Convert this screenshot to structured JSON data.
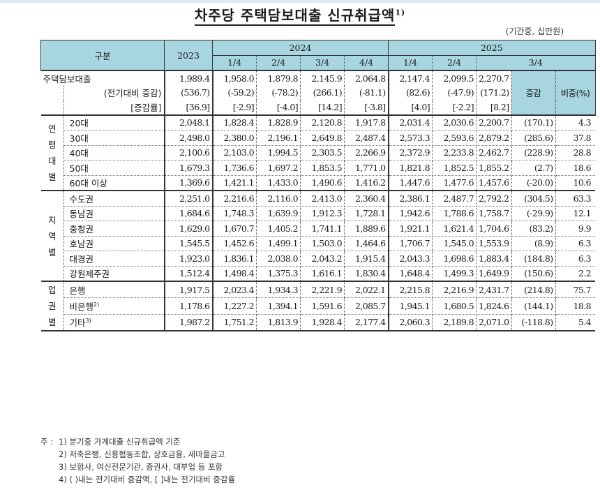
{
  "title": "차주당 주택담보대출 신규취급액",
  "title_sup": "1)",
  "unit": "(기간중, 십만원)",
  "header": {
    "category": "구분",
    "y2023": "2023",
    "y2024": "2024",
    "y2025": "2025",
    "q2024": [
      "1/4",
      "2/4",
      "3/4",
      "4/4"
    ],
    "q2025": [
      "1/4",
      "2/4",
      "3/4"
    ],
    "change": "증감",
    "share": "비중(%)"
  },
  "total": {
    "label": "주택담보대출",
    "values": [
      "1,989.4",
      "1,958.0",
      "1,879.8",
      "2,145.9",
      "2,064.8",
      "2,147.4",
      "2,099.5",
      "2,270.7"
    ],
    "change_label": "(전기대비 증감)",
    "change": [
      "(536.7)",
      "(-59.2)",
      "(-78.2)",
      "(266.1)",
      "(-81.1)",
      "(82.6)",
      "(-47.9)",
      "(171.2)"
    ],
    "rate_label": "[증감률]",
    "rate": [
      "[36.9]",
      "[-2.9]",
      "[-4.0]",
      "[14.2]",
      "[-3.8]",
      "[4.0]",
      "[-2.2]",
      "[8.2]"
    ]
  },
  "groups": [
    {
      "name": "연령대별",
      "chars": [
        "연",
        "령",
        "대",
        "별"
      ],
      "rows": [
        {
          "label": "20대",
          "values": [
            "2,048.1",
            "1,828.4",
            "1,828.9",
            "2,120.8",
            "1,917.8",
            "2,031.4",
            "2,030.6",
            "2,200.7"
          ],
          "change": "(170.1)",
          "share": "4.3"
        },
        {
          "label": "30대",
          "values": [
            "2,498.0",
            "2,380.0",
            "2,196.1",
            "2,649.8",
            "2,487.4",
            "2,573.3",
            "2,593.6",
            "2,879.2"
          ],
          "change": "(285.6)",
          "share": "37.8"
        },
        {
          "label": "40대",
          "values": [
            "2,100.6",
            "2,103.0",
            "1,994.5",
            "2,303.5",
            "2,266.9",
            "2,372.9",
            "2,233.8",
            "2,462.7"
          ],
          "change": "(228.9)",
          "share": "28.8"
        },
        {
          "label": "50대",
          "values": [
            "1,679.3",
            "1,736.6",
            "1,697.2",
            "1,853.5",
            "1,771.0",
            "1,821.8",
            "1,852.5",
            "1,855.2"
          ],
          "change": "(2.7)",
          "share": "18.6"
        },
        {
          "label": "60대 이상",
          "values": [
            "1,369.6",
            "1,421.1",
            "1,433.0",
            "1,490.6",
            "1,416.2",
            "1,447.6",
            "1,477.6",
            "1,457.6"
          ],
          "change": "(-20.0)",
          "share": "10.6"
        }
      ]
    },
    {
      "name": "지역별",
      "chars": [
        "지",
        "역",
        "별"
      ],
      "rows": [
        {
          "label": "수도권",
          "values": [
            "2,251.0",
            "2,216.6",
            "2,116.0",
            "2,413.0",
            "2,360.4",
            "2,386.1",
            "2,487.7",
            "2,792.2"
          ],
          "change": "(304.5)",
          "share": "63.3"
        },
        {
          "label": "동남권",
          "values": [
            "1,684.6",
            "1,748.3",
            "1,639.9",
            "1,912.3",
            "1,728.1",
            "1,942.6",
            "1,788.6",
            "1,758.7"
          ],
          "change": "(-29.9)",
          "share": "12.1"
        },
        {
          "label": "충청권",
          "values": [
            "1,629.0",
            "1,670.7",
            "1,405.2",
            "1,741.1",
            "1,889.6",
            "1,921.1",
            "1,621.4",
            "1,704.6"
          ],
          "change": "(83.2)",
          "share": "9.9"
        },
        {
          "label": "호남권",
          "values": [
            "1,545.5",
            "1,452.6",
            "1,499.1",
            "1,503.0",
            "1,464.6",
            "1,706.7",
            "1,545.0",
            "1,553.9"
          ],
          "change": "(8.9)",
          "share": "6.3"
        },
        {
          "label": "대경권",
          "values": [
            "1,923.0",
            "1,836.1",
            "2,038.0",
            "2,043.2",
            "1,915.4",
            "2,043.3",
            "1,698.6",
            "1,883.4"
          ],
          "change": "(184.8)",
          "share": "6.3"
        },
        {
          "label": "강원제주권",
          "values": [
            "1,512.4",
            "1,498.4",
            "1,375.3",
            "1,616.1",
            "1,830.4",
            "1,648.4",
            "1,499.3",
            "1,649.9"
          ],
          "change": "(150.6)",
          "share": "2.2"
        }
      ]
    },
    {
      "name": "업권별",
      "chars": [
        "업",
        "권",
        "별"
      ],
      "rows": [
        {
          "label": "은행",
          "sup": "",
          "values": [
            "1,917.5",
            "2,023.4",
            "1,934.3",
            "2,221.9",
            "2,022.1",
            "2,215.8",
            "2,216.9",
            "2,431.7"
          ],
          "change": "(214.8)",
          "share": "75.7"
        },
        {
          "label": "비은행",
          "sup": "2)",
          "values": [
            "1,178.6",
            "1,227.2",
            "1,394.1",
            "1,591.6",
            "2,085.7",
            "1,945.1",
            "1,680.5",
            "1,824.6"
          ],
          "change": "(144.1)",
          "share": "18.8"
        },
        {
          "label": "기타",
          "sup": "3)",
          "values": [
            "1,987.2",
            "1,751.2",
            "1,813.9",
            "1,928.4",
            "2,177.4",
            "2,060.3",
            "2,189.8",
            "2,071.0"
          ],
          "change": "(-118.8)",
          "share": "5.4"
        }
      ]
    }
  ],
  "notes": {
    "prefix": "주 :",
    "items": [
      "1) 분기중 가계대출 신규취급액 기준",
      "2) 저축은행, 신용협동조합, 상호금융, 새마을금고",
      "3) 보험사, 여신전문기관, 증권사, 대부업 등 포함",
      "4) ( )내는 전기대비 증감액, [ ]내는 전기대비 증감률"
    ]
  }
}
